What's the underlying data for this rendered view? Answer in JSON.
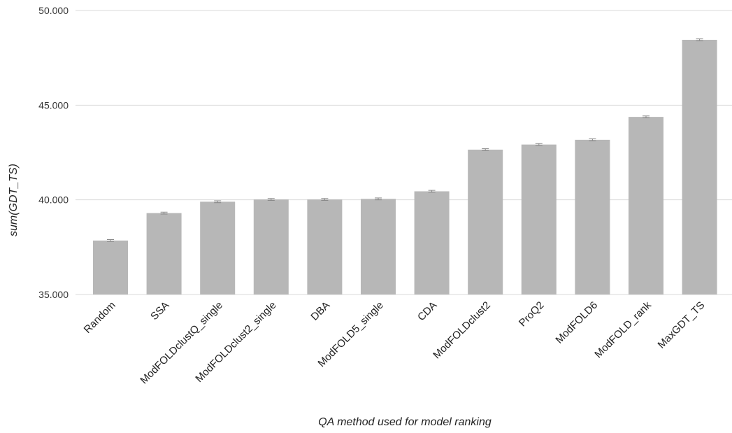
{
  "chart_data": {
    "type": "bar",
    "categories": [
      "Random",
      "SSA",
      "ModFOLDclustQ_single",
      "ModFOLDclust2_single",
      "DBA",
      "ModFOLD5_single",
      "CDA",
      "ModFOLDclust2",
      "ProQ2",
      "ModFOLD6",
      "ModFOLD_rank",
      "MaxGDT_TS"
    ],
    "values": [
      37.85,
      39.3,
      39.9,
      40.02,
      40.02,
      40.05,
      40.45,
      42.65,
      42.92,
      43.17,
      44.38,
      48.45
    ],
    "errors": [
      0.05,
      0.05,
      0.05,
      0.05,
      0.05,
      0.05,
      0.05,
      0.05,
      0.05,
      0.05,
      0.05,
      0.05
    ],
    "yticks": [
      "35.000",
      "40.000",
      "45.000",
      "50.000"
    ],
    "ylim": [
      35,
      50
    ],
    "xlabel": "QA method used for model ranking",
    "ylabel": "sum(GDT_TS)",
    "grid": true,
    "colors": {
      "bar": "#b7b7b7",
      "error": "#888888",
      "grid": "#d9d9d9"
    }
  }
}
